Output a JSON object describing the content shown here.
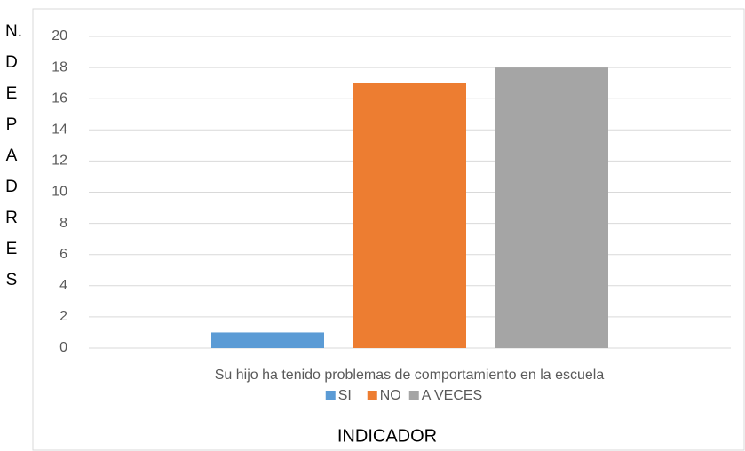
{
  "chart_data": {
    "type": "bar",
    "x_label": "INDICADOR",
    "y_label": "N. DE PADRES",
    "categories": [
      "Su hijo ha tenido problemas de comportamiento en la escuela"
    ],
    "series": [
      {
        "name": "SI",
        "color": "#5b9bd5",
        "values": [
          1
        ]
      },
      {
        "name": "NO",
        "color": "#ed7d31",
        "values": [
          17
        ]
      },
      {
        "name": "A VECES",
        "color": "#a5a5a5",
        "values": [
          18
        ]
      }
    ],
    "ylim": [
      0,
      20
    ],
    "yticks": [
      0,
      2,
      4,
      6,
      8,
      10,
      12,
      14,
      16,
      18,
      20
    ],
    "grid": true,
    "legend": "bottom"
  }
}
